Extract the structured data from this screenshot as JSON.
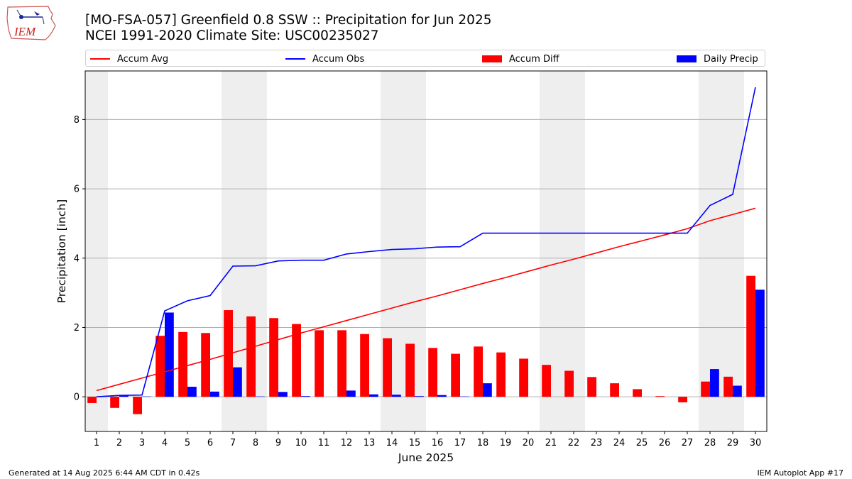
{
  "header": {
    "title_line1": "[MO-FSA-057] Greenfield 0.8 SSW :: Precipitation for Jun 2025",
    "title_line2": "NCEI 1991-2020 Climate Site: USC00235027",
    "logo_text": "IEM"
  },
  "footer": {
    "left": "Generated at 14 Aug 2025 6:44 AM CDT in 0.42s",
    "right": "IEM Autoplot App #17"
  },
  "colors": {
    "avg": "#ff0000",
    "obs": "#0000ff",
    "diff": "#ff0000",
    "daily": "#0000ff",
    "weekend_shade": "#eeeeee",
    "grid": "#b0b0b0"
  },
  "chart_data": {
    "type": "bar",
    "xlabel": "June 2025",
    "ylabel": "Precipitation [inch]",
    "ylim": [
      -1.0,
      9.4
    ],
    "yticks": [
      0,
      2,
      4,
      6,
      8
    ],
    "grid": "horizontal",
    "legend_placement": "top",
    "legend": [
      "Accum Avg",
      "Accum Obs",
      "Accum Diff",
      "Daily Precip"
    ],
    "days": [
      1,
      2,
      3,
      4,
      5,
      6,
      7,
      8,
      9,
      10,
      11,
      12,
      13,
      14,
      15,
      16,
      17,
      18,
      19,
      20,
      21,
      22,
      23,
      24,
      25,
      26,
      27,
      28,
      29,
      30
    ],
    "shaded_days": [
      [
        1,
        1
      ],
      [
        7,
        8
      ],
      [
        14,
        15
      ],
      [
        21,
        22
      ],
      [
        28,
        29
      ]
    ],
    "series": [
      {
        "name": "Accum Avg",
        "type": "line",
        "values": [
          0.18,
          0.36,
          0.54,
          0.72,
          0.9,
          1.08,
          1.27,
          1.46,
          1.65,
          1.84,
          2.02,
          2.2,
          2.38,
          2.56,
          2.74,
          2.91,
          3.09,
          3.27,
          3.44,
          3.62,
          3.8,
          3.97,
          4.15,
          4.33,
          4.5,
          4.67,
          4.85,
          5.08,
          5.26,
          5.44
        ]
      },
      {
        "name": "Accum Obs",
        "type": "line",
        "values": [
          0.0,
          0.04,
          0.05,
          2.48,
          2.77,
          2.92,
          3.77,
          3.78,
          3.92,
          3.94,
          3.94,
          4.12,
          4.19,
          4.25,
          4.27,
          4.32,
          4.33,
          4.72,
          4.72,
          4.72,
          4.72,
          4.72,
          4.72,
          4.72,
          4.72,
          4.72,
          4.72,
          5.52,
          5.84,
          8.93
        ]
      },
      {
        "name": "Accum Diff",
        "type": "bar",
        "values": [
          -0.18,
          -0.32,
          -0.5,
          1.76,
          1.87,
          1.84,
          2.5,
          2.32,
          2.27,
          2.1,
          1.92,
          1.92,
          1.81,
          1.69,
          1.53,
          1.41,
          1.24,
          1.45,
          1.28,
          1.1,
          0.92,
          0.75,
          0.57,
          0.39,
          0.22,
          0.02,
          -0.16,
          0.44,
          0.58,
          3.49
        ]
      },
      {
        "name": "Daily Precip",
        "type": "bar",
        "values": [
          0.0,
          0.04,
          0.01,
          2.43,
          0.29,
          0.15,
          0.85,
          0.01,
          0.14,
          0.02,
          0.0,
          0.18,
          0.07,
          0.06,
          0.02,
          0.05,
          0.01,
          0.39,
          0.0,
          0.0,
          0.0,
          0.0,
          0.0,
          0.0,
          0.0,
          0.0,
          0.0,
          0.8,
          0.32,
          3.09
        ]
      }
    ]
  }
}
